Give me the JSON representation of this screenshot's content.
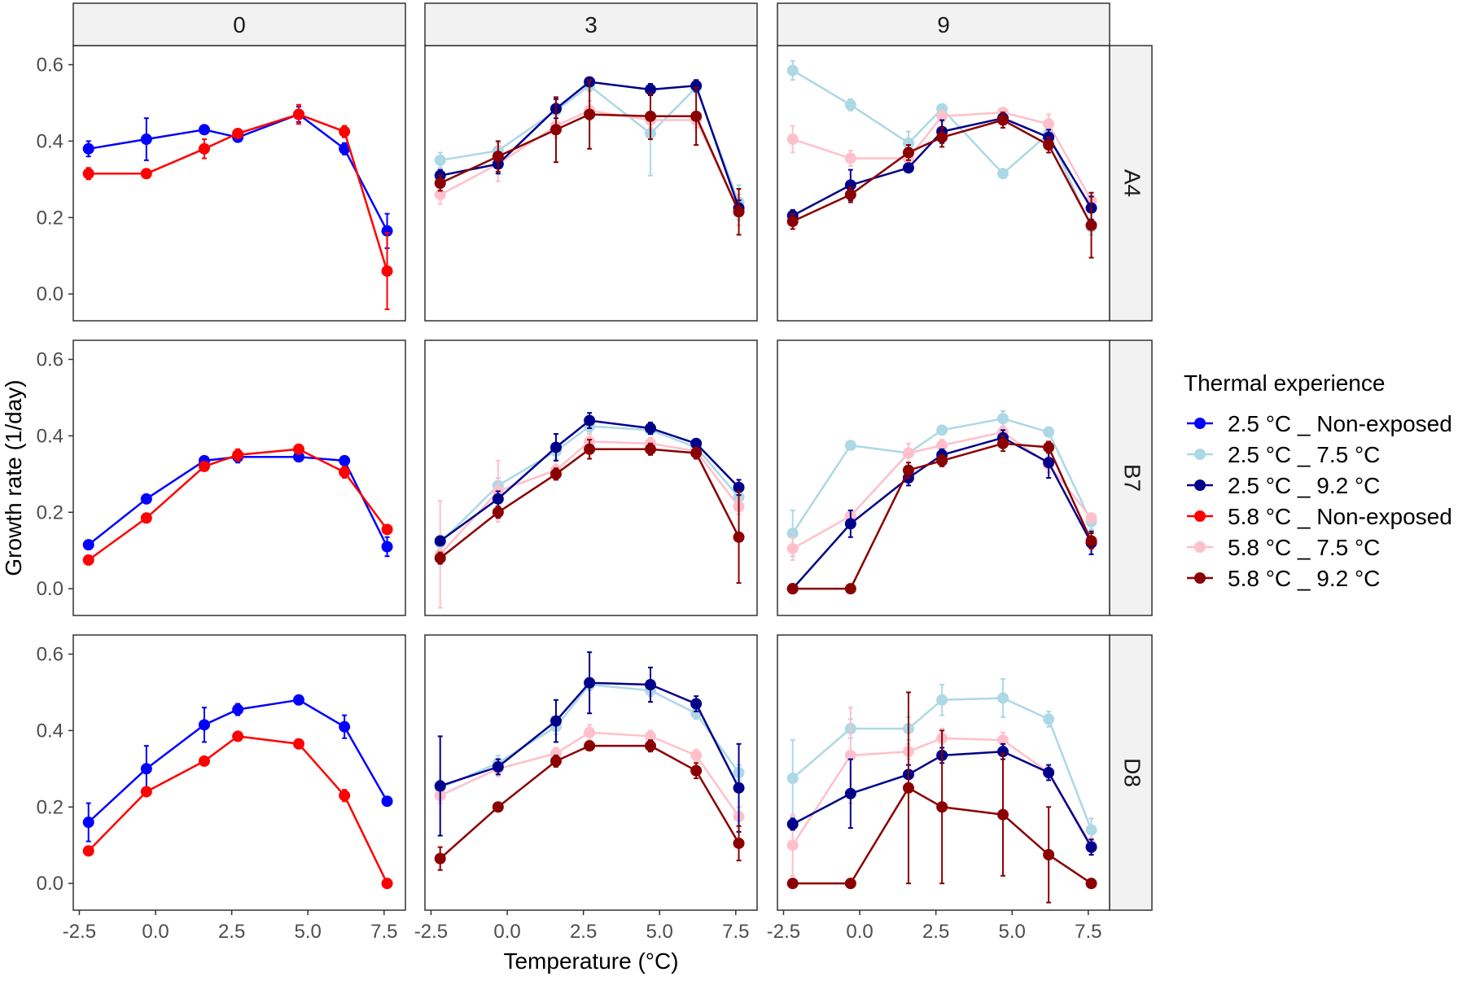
{
  "chart_data": {
    "type": "line",
    "xlabel": "Temperature (°C)",
    "ylabel": "Growth rate (1/day)",
    "xlim": [
      -2.7,
      8.2
    ],
    "ylim": [
      -0.07,
      0.65
    ],
    "x_ticks": [
      -2.5,
      0.0,
      2.5,
      5.0,
      7.5
    ],
    "x_tick_labels": [
      "-2.5",
      "0.0",
      "2.5",
      "5.0",
      "7.5"
    ],
    "y_ticks": [
      0.0,
      0.2,
      0.4,
      0.6
    ],
    "y_tick_labels": [
      "0.0",
      "0.2",
      "0.4",
      "0.6"
    ],
    "x": [
      -2.2,
      -0.3,
      1.6,
      2.7,
      4.7,
      6.2,
      7.6
    ],
    "facet_cols": [
      "0",
      "3",
      "9"
    ],
    "facet_rows": [
      "A4",
      "B7",
      "D8"
    ],
    "legend": {
      "title": "Thermal experience",
      "entries": [
        {
          "name": "2.5 °C _ Non-exposed",
          "color": "#0000ff"
        },
        {
          "name": "2.5 °C _ 7.5 °C",
          "color": "#add8e6"
        },
        {
          "name": "2.5 °C _ 9.2 °C",
          "color": "#00008b"
        },
        {
          "name": "5.8 °C _ Non-exposed",
          "color": "#ff0000"
        },
        {
          "name": "5.8 °C _ 7.5 °C",
          "color": "#ffc0cb"
        },
        {
          "name": "5.8 °C _ 9.2 °C",
          "color": "#8b0000"
        }
      ]
    },
    "panels": [
      {
        "row": "A4",
        "col": "0",
        "series": [
          {
            "name": "2.5 °C _ Non-exposed",
            "color": "#0000ff",
            "values": [
              0.38,
              0.405,
              0.43,
              0.41,
              0.47,
              0.38,
              0.165
            ],
            "errors": [
              0.02,
              0.055,
              0.01,
              0.01,
              0.02,
              0.015,
              0.045
            ]
          },
          {
            "name": "5.8 °C _ Non-exposed",
            "color": "#ff0000",
            "values": [
              0.315,
              0.315,
              0.38,
              0.42,
              0.47,
              0.425,
              0.06
            ],
            "errors": [
              0.015,
              0.01,
              0.025,
              0.01,
              0.025,
              0.015,
              0.1
            ]
          }
        ]
      },
      {
        "row": "A4",
        "col": "3",
        "series": [
          {
            "name": "2.5 °C _ 7.5 °C",
            "color": "#add8e6",
            "values": [
              0.35,
              0.375,
              0.48,
              0.545,
              0.42,
              0.54,
              0.24
            ],
            "errors": [
              0.02,
              0.02,
              0.02,
              0.015,
              0.11,
              0.015,
              0.045
            ]
          },
          {
            "name": "5.8 °C _ 7.5 °C",
            "color": "#ffc0cb",
            "values": [
              0.26,
              0.34,
              0.44,
              0.48,
              0.455,
              0.455,
              0.22
            ],
            "errors": [
              0.025,
              0.045,
              0.03,
              0.025,
              0.02,
              0.02,
              0.04
            ]
          },
          {
            "name": "2.5 °C _ 9.2 °C",
            "color": "#00008b",
            "values": [
              0.31,
              0.34,
              0.485,
              0.555,
              0.535,
              0.545,
              0.225
            ],
            "errors": [
              0.015,
              0.025,
              0.025,
              0.01,
              0.015,
              0.015,
              0.02
            ]
          },
          {
            "name": "5.8 °C _ 9.2 °C",
            "color": "#8b0000",
            "values": [
              0.29,
              0.36,
              0.43,
              0.47,
              0.465,
              0.465,
              0.215
            ],
            "errors": [
              0.02,
              0.04,
              0.085,
              0.09,
              0.06,
              0.075,
              0.06
            ]
          }
        ]
      },
      {
        "row": "A4",
        "col": "9",
        "series": [
          {
            "name": "2.5 °C _ 7.5 °C",
            "color": "#add8e6",
            "values": [
              0.585,
              0.495,
              0.395,
              0.485,
              0.315,
              0.42,
              0.175
            ],
            "errors": [
              0.025,
              0.015,
              0.03,
              0.01,
              0.01,
              0.015,
              0.02
            ]
          },
          {
            "name": "5.8 °C _ 7.5 °C",
            "color": "#ffc0cb",
            "values": [
              0.405,
              0.355,
              0.355,
              0.465,
              0.475,
              0.445,
              0.245
            ],
            "errors": [
              0.035,
              0.02,
              0.01,
              0.015,
              0.01,
              0.025,
              0.02
            ]
          },
          {
            "name": "2.5 °C _ 9.2 °C",
            "color": "#00008b",
            "values": [
              0.205,
              0.285,
              0.33,
              0.425,
              0.46,
              0.41,
              0.225
            ],
            "errors": [
              0.015,
              0.04,
              0.01,
              0.03,
              0.015,
              0.02,
              0.03
            ]
          },
          {
            "name": "5.8 °C _ 9.2 °C",
            "color": "#8b0000",
            "values": [
              0.19,
              0.26,
              0.37,
              0.41,
              0.455,
              0.39,
              0.18
            ],
            "errors": [
              0.02,
              0.02,
              0.02,
              0.025,
              0.02,
              0.02,
              0.085
            ]
          }
        ]
      },
      {
        "row": "B7",
        "col": "0",
        "series": [
          {
            "name": "2.5 °C _ Non-exposed",
            "color": "#0000ff",
            "values": [
              0.115,
              0.235,
              0.335,
              0.345,
              0.345,
              0.335,
              0.11
            ],
            "errors": [
              0.01,
              0.01,
              0.01,
              0.015,
              0.01,
              0.01,
              0.025
            ]
          },
          {
            "name": "5.8 °C _ Non-exposed",
            "color": "#ff0000",
            "values": [
              0.075,
              0.185,
              0.32,
              0.35,
              0.365,
              0.305,
              0.155
            ],
            "errors": [
              0.01,
              0.01,
              0.01,
              0.015,
              0.01,
              0.015,
              0.01
            ]
          }
        ]
      },
      {
        "row": "B7",
        "col": "3",
        "series": [
          {
            "name": "2.5 °C _ 7.5 °C",
            "color": "#add8e6",
            "values": [
              0.12,
              0.27,
              0.36,
              0.425,
              0.415,
              0.37,
              0.24
            ],
            "errors": [
              0.02,
              0.02,
              0.02,
              0.015,
              0.01,
              0.015,
              0.02
            ]
          },
          {
            "name": "5.8 °C _ 7.5 °C",
            "color": "#ffc0cb",
            "values": [
              0.09,
              0.255,
              0.31,
              0.385,
              0.38,
              0.36,
              0.215
            ],
            "errors": [
              0.14,
              0.08,
              0.015,
              0.02,
              0.015,
              0.015,
              0.02
            ]
          },
          {
            "name": "2.5 °C _ 9.2 °C",
            "color": "#00008b",
            "values": [
              0.125,
              0.235,
              0.37,
              0.44,
              0.42,
              0.38,
              0.265
            ],
            "errors": [
              0.01,
              0.02,
              0.035,
              0.02,
              0.015,
              0.01,
              0.02
            ]
          },
          {
            "name": "5.8 °C _ 9.2 °C",
            "color": "#8b0000",
            "values": [
              0.08,
              0.2,
              0.3,
              0.365,
              0.365,
              0.355,
              0.135
            ],
            "errors": [
              0.015,
              0.015,
              0.015,
              0.025,
              0.015,
              0.015,
              0.12
            ]
          }
        ]
      },
      {
        "row": "B7",
        "col": "9",
        "series": [
          {
            "name": "2.5 °C _ 7.5 °C",
            "color": "#add8e6",
            "values": [
              0.145,
              0.375,
              0.355,
              0.415,
              0.445,
              0.41,
              0.175
            ],
            "errors": [
              0.06,
              0.01,
              0.01,
              0.01,
              0.02,
              0.01,
              0.02
            ]
          },
          {
            "name": "5.8 °C _ 7.5 °C",
            "color": "#ffc0cb",
            "values": [
              0.105,
              0.19,
              0.355,
              0.375,
              0.41,
              0.325,
              0.185
            ],
            "errors": [
              0.03,
              0.015,
              0.025,
              0.015,
              0.015,
              0.02,
              0.01
            ]
          },
          {
            "name": "2.5 °C _ 9.2 °C",
            "color": "#00008b",
            "values": [
              0.0,
              0.17,
              0.29,
              0.35,
              0.395,
              0.33,
              0.12
            ],
            "errors": [
              0.0,
              0.035,
              0.02,
              0.015,
              0.02,
              0.04,
              0.03
            ]
          },
          {
            "name": "5.8 °C _ 9.2 °C",
            "color": "#8b0000",
            "values": [
              0.0,
              0.0,
              0.31,
              0.335,
              0.38,
              0.37,
              0.125
            ],
            "errors": [
              0.0,
              0.0,
              0.02,
              0.015,
              0.02,
              0.015,
              0.02
            ]
          }
        ]
      },
      {
        "row": "D8",
        "col": "0",
        "series": [
          {
            "name": "2.5 °C _ Non-exposed",
            "color": "#0000ff",
            "values": [
              0.16,
              0.3,
              0.415,
              0.455,
              0.48,
              0.41,
              0.215
            ],
            "errors": [
              0.05,
              0.06,
              0.045,
              0.015,
              0.01,
              0.03,
              0.01
            ]
          },
          {
            "name": "5.8 °C _ Non-exposed",
            "color": "#ff0000",
            "values": [
              0.085,
              0.24,
              0.32,
              0.385,
              0.365,
              0.23,
              0.0
            ],
            "errors": [
              0.01,
              0.01,
              0.01,
              0.01,
              0.01,
              0.015,
              0.005
            ]
          }
        ]
      },
      {
        "row": "D8",
        "col": "3",
        "series": [
          {
            "name": "2.5 °C _ 7.5 °C",
            "color": "#add8e6",
            "values": [
              0.25,
              0.315,
              0.41,
              0.52,
              0.505,
              0.445,
              0.29
            ],
            "errors": [
              0.02,
              0.02,
              0.02,
              0.015,
              0.015,
              0.015,
              0.02
            ]
          },
          {
            "name": "5.8 °C _ 7.5 °C",
            "color": "#ffc0cb",
            "values": [
              0.23,
              0.3,
              0.34,
              0.395,
              0.385,
              0.335,
              0.175
            ],
            "errors": [
              0.02,
              0.02,
              0.015,
              0.02,
              0.015,
              0.015,
              0.025
            ]
          },
          {
            "name": "2.5 °C _ 9.2 °C",
            "color": "#00008b",
            "values": [
              0.255,
              0.305,
              0.425,
              0.525,
              0.52,
              0.47,
              0.25
            ],
            "errors": [
              0.13,
              0.02,
              0.055,
              0.08,
              0.045,
              0.02,
              0.115
            ]
          },
          {
            "name": "5.8 °C _ 9.2 °C",
            "color": "#8b0000",
            "values": [
              0.065,
              0.2,
              0.32,
              0.36,
              0.36,
              0.295,
              0.105
            ],
            "errors": [
              0.03,
              0.01,
              0.015,
              0.01,
              0.015,
              0.02,
              0.045
            ]
          }
        ]
      },
      {
        "row": "D8",
        "col": "9",
        "series": [
          {
            "name": "2.5 °C _ 7.5 °C",
            "color": "#add8e6",
            "values": [
              0.275,
              0.405,
              0.405,
              0.48,
              0.485,
              0.43,
              0.14
            ],
            "errors": [
              0.1,
              0.025,
              0.03,
              0.04,
              0.05,
              0.02,
              0.03
            ]
          },
          {
            "name": "5.8 °C _ 7.5 °C",
            "color": "#ffc0cb",
            "values": [
              0.1,
              0.335,
              0.345,
              0.38,
              0.375,
              0.29,
              0.1
            ],
            "errors": [
              0.08,
              0.125,
              0.02,
              0.025,
              0.02,
              0.015,
              0.02
            ]
          },
          {
            "name": "2.5 °C _ 9.2 °C",
            "color": "#00008b",
            "values": [
              0.155,
              0.235,
              0.285,
              0.335,
              0.345,
              0.29,
              0.095
            ],
            "errors": [
              0.015,
              0.09,
              0.025,
              0.02,
              0.02,
              0.02,
              0.02
            ]
          },
          {
            "name": "5.8 °C _ 9.2 °C",
            "color": "#8b0000",
            "values": [
              0.0,
              0.0,
              0.25,
              0.2,
              0.18,
              0.075,
              0.0
            ],
            "errors": [
              0.0,
              0.0,
              0.25,
              0.2,
              0.16,
              0.125,
              0.0
            ]
          }
        ]
      }
    ]
  }
}
